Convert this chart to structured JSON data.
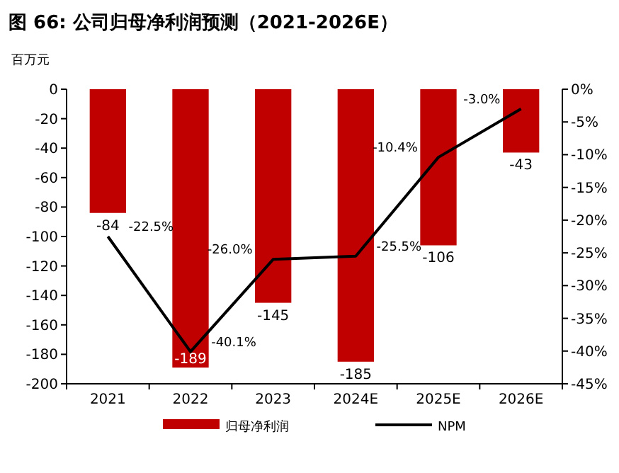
{
  "chart_data": {
    "type": "bar",
    "title": "图 66: 公司归母净利润预测（2021-2026E）",
    "ylabel": "百万元",
    "categories": [
      "2021",
      "2022",
      "2023",
      "2024E",
      "2025E",
      "2026E"
    ],
    "series": [
      {
        "name": "归母净利润",
        "color": "#c00000",
        "values": [
          -84,
          -189,
          -145,
          -185,
          -106,
          -43
        ]
      },
      {
        "name": "NPM",
        "type": "line",
        "axis": "y2",
        "color": "#000000",
        "values": [
          -22.5,
          -40.1,
          -26.0,
          -25.5,
          -10.4,
          -3.0
        ],
        "value_labels": [
          "-22.5%",
          "-40.1%",
          "-26.0%",
          "-25.5%",
          "-10.4%",
          "-3.0%"
        ]
      }
    ],
    "data_labels": true,
    "ylim": [
      -200,
      0
    ],
    "yticks": [
      -200,
      -180,
      -160,
      -140,
      -120,
      -100,
      -80,
      -60,
      -40,
      -20,
      0
    ],
    "y2lim": [
      -45,
      0
    ],
    "y2ticks": [
      {
        "value": -45,
        "label": "-45%"
      },
      {
        "value": -40,
        "label": "-40%"
      },
      {
        "value": -35,
        "label": "-35%"
      },
      {
        "value": -30,
        "label": "-30%"
      },
      {
        "value": -25,
        "label": "-25%"
      },
      {
        "value": -20,
        "label": "-20%"
      },
      {
        "value": -15,
        "label": "-15%"
      },
      {
        "value": -10,
        "label": "-10%"
      },
      {
        "value": -5,
        "label": "-5%"
      },
      {
        "value": 0,
        "label": "0%"
      }
    ],
    "legend": "bottom",
    "grid": false
  }
}
